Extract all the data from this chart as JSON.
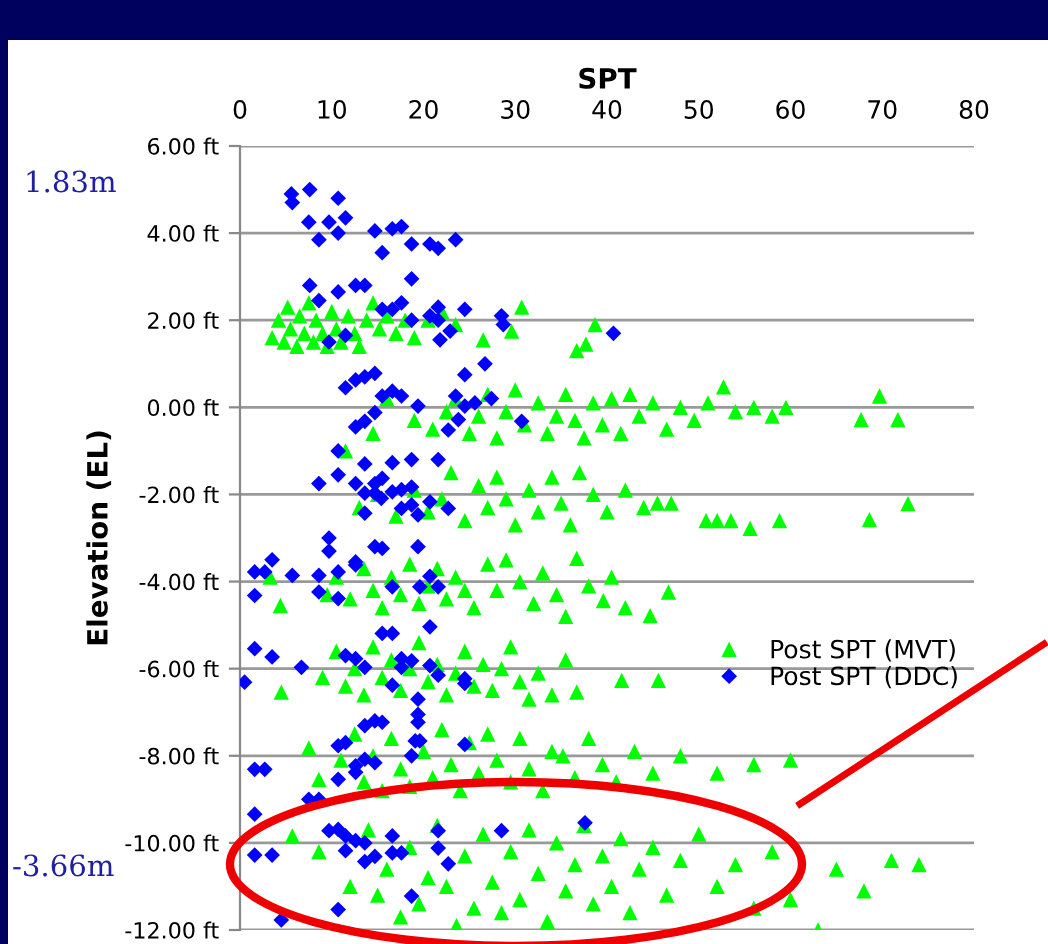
{
  "chart_data": {
    "type": "scatter",
    "xlabel": "SPT",
    "ylabel": "Elevation (EL)",
    "xlim": [
      0,
      80
    ],
    "xticks": [
      0,
      10,
      20,
      30,
      40,
      50,
      60,
      70,
      80
    ],
    "ylim": [
      -12,
      6
    ],
    "yticks": [
      {
        "value": 6,
        "label": "6.00 ft"
      },
      {
        "value": 4,
        "label": "4.00 ft"
      },
      {
        "value": 2,
        "label": "2.00 ft"
      },
      {
        "value": 0,
        "label": "0.00 ft"
      },
      {
        "value": -2,
        "label": "-2.00 ft"
      },
      {
        "value": -4,
        "label": "-4.00 ft"
      },
      {
        "value": -6,
        "label": "-6.00 ft"
      },
      {
        "value": -8,
        "label": "-8.00 ft"
      },
      {
        "value": -10,
        "label": "-10.00 ft"
      },
      {
        "value": -12,
        "label": "-12.00 ft"
      }
    ],
    "grid": "y",
    "legend": "right",
    "annotations": [
      "1.83m",
      "-3.66m"
    ],
    "series": [
      {
        "name": "Post SPT (MVT)",
        "color": "#00ff00",
        "marker": "triangle",
        "x": [
          3.5,
          4.2,
          4.8,
          5.2,
          5.5,
          6.2,
          6.5,
          7.0,
          7.5,
          8.0,
          8.3,
          9.0,
          9.5,
          10.0,
          10.5,
          11.0,
          11.8,
          12.5,
          13.0,
          13.8,
          14.5,
          15.2,
          16.0,
          17.0,
          18.0,
          19.0,
          20.5,
          22.0,
          23.5,
          26.5,
          29.6,
          30.7,
          36.7,
          37.7,
          38.7,
          14.5,
          16.0,
          19.0,
          21.0,
          22.5,
          23.5,
          25.0,
          26.0,
          27.0,
          28.0,
          29.0,
          30.0,
          31.0,
          32.5,
          33.5,
          34.5,
          35.5,
          36.5,
          37.5,
          38.5,
          39.5,
          40.5,
          41.5,
          42.5,
          43.5,
          45.0,
          46.5,
          48.0,
          49.5,
          51.0,
          52.7,
          54.0,
          56.0,
          58.0,
          59.5,
          67.7,
          69.7,
          71.7,
          11.5,
          13.0,
          15.0,
          17.0,
          19.0,
          20.5,
          22.0,
          23.0,
          24.5,
          26.0,
          27.0,
          28.0,
          29.0,
          30.0,
          31.5,
          32.5,
          34.0,
          35.0,
          36.0,
          37.0,
          38.5,
          40.0,
          42.0,
          44.0,
          45.5,
          47.0,
          50.8,
          52.0,
          53.5,
          55.6,
          58.8,
          68.6,
          72.8,
          3.3,
          4.4,
          9.5,
          10.5,
          12.0,
          13.5,
          14.5,
          15.5,
          16.5,
          17.5,
          18.5,
          19.5,
          20.5,
          21.5,
          22.5,
          23.5,
          24.5,
          25.5,
          27.0,
          28.0,
          29.0,
          30.5,
          32.0,
          33.0,
          34.5,
          35.5,
          36.7,
          38.0,
          39.6,
          40.5,
          42.0,
          44.7,
          46.7,
          4.5,
          9.0,
          10.5,
          11.5,
          12.5,
          13.5,
          14.5,
          15.5,
          16.5,
          17.5,
          18.5,
          19.5,
          20.5,
          21.5,
          22.5,
          23.5,
          24.5,
          25.5,
          26.5,
          27.5,
          28.5,
          29.5,
          30.5,
          31.5,
          32.5,
          34.0,
          35.5,
          36.7,
          41.6,
          45.6,
          7.5,
          8.6,
          11.0,
          12.5,
          13.5,
          14.5,
          15.5,
          16.5,
          17.5,
          18.5,
          20.0,
          21.0,
          22.0,
          23.0,
          24.0,
          25.0,
          26.0,
          27.0,
          28.0,
          29.5,
          30.5,
          31.5,
          33.0,
          34.0,
          35.2,
          36.5,
          38.0,
          39.5,
          41.0,
          43.0,
          45.0,
          48.0,
          52.0,
          56.0,
          60.0,
          5.7,
          8.6,
          12.0,
          14.0,
          15.0,
          16.0,
          17.5,
          18.5,
          19.5,
          20.5,
          21.5,
          22.5,
          23.6,
          24.5,
          25.5,
          26.5,
          27.5,
          28.5,
          29.5,
          30.5,
          31.5,
          32.5,
          33.5,
          34.5,
          35.5,
          36.5,
          37.5,
          38.5,
          39.5,
          40.5,
          41.5,
          42.5,
          43.5,
          45.0,
          46.5,
          48.0,
          50.0,
          52.0,
          54.0,
          56.0,
          58.0,
          60.0,
          63.0,
          65.0,
          68.0,
          71.0,
          74.0
        ],
        "values": [
          1.6,
          2.0,
          1.5,
          2.3,
          1.8,
          1.4,
          2.1,
          1.7,
          2.4,
          1.5,
          2.0,
          1.7,
          1.4,
          2.2,
          1.8,
          1.5,
          2.1,
          1.7,
          1.4,
          2.0,
          2.4,
          1.8,
          2.1,
          1.7,
          2.0,
          1.6,
          2.0,
          2.2,
          1.9,
          1.55,
          1.75,
          2.3,
          1.3,
          1.45,
          1.9,
          -0.6,
          0.2,
          -0.3,
          -0.5,
          -0.1,
          0.2,
          -0.6,
          -0.2,
          0.3,
          -0.7,
          -0.1,
          0.4,
          -0.4,
          0.1,
          -0.6,
          -0.2,
          0.3,
          -0.3,
          -0.7,
          0.1,
          -0.4,
          0.2,
          -0.6,
          0.3,
          -0.2,
          0.1,
          -0.5,
          0.0,
          -0.3,
          0.1,
          0.47,
          -0.1,
          0.0,
          -0.2,
          0.0,
          -0.28,
          0.26,
          -0.28,
          -1.0,
          -2.3,
          -2.0,
          -2.5,
          -1.9,
          -2.4,
          -2.1,
          -1.5,
          -2.6,
          -1.8,
          -2.3,
          -1.6,
          -2.1,
          -2.7,
          -1.9,
          -2.4,
          -1.6,
          -2.2,
          -2.7,
          -1.5,
          -2.0,
          -2.4,
          -1.9,
          -2.3,
          -2.2,
          -2.2,
          -2.6,
          -2.6,
          -2.6,
          -2.78,
          -2.6,
          -2.58,
          -2.21,
          -3.9,
          -4.55,
          -4.3,
          -3.9,
          -4.4,
          -3.7,
          -4.2,
          -4.6,
          -3.9,
          -4.3,
          -3.6,
          -4.5,
          -4.1,
          -3.7,
          -4.4,
          -3.9,
          -4.2,
          -4.6,
          -3.6,
          -4.2,
          -3.5,
          -4.0,
          -4.5,
          -3.8,
          -4.3,
          -4.8,
          -3.47,
          -4.1,
          -4.44,
          -3.9,
          -4.6,
          -4.78,
          -4.24,
          -6.54,
          -6.2,
          -5.6,
          -6.4,
          -6.0,
          -6.6,
          -5.5,
          -6.2,
          -5.8,
          -6.5,
          -6.0,
          -5.4,
          -6.3,
          -5.9,
          -6.6,
          -6.1,
          -5.6,
          -6.4,
          -5.9,
          -6.5,
          -6.0,
          -5.5,
          -6.3,
          -6.7,
          -6.1,
          -6.6,
          -5.8,
          -6.54,
          -6.27,
          -6.27,
          -7.82,
          -8.54,
          -8.1,
          -7.5,
          -8.6,
          -8.0,
          -8.8,
          -7.6,
          -8.3,
          -8.7,
          -7.9,
          -8.5,
          -7.4,
          -8.2,
          -8.8,
          -7.7,
          -8.4,
          -7.5,
          -8.1,
          -8.6,
          -7.6,
          -8.3,
          -8.8,
          -7.9,
          -8.0,
          -8.5,
          -7.6,
          -8.2,
          -8.6,
          -7.9,
          -8.4,
          -8.0,
          -8.4,
          -8.2,
          -8.1,
          -9.84,
          -10.2,
          -11.0,
          -9.7,
          -11.2,
          -10.6,
          -11.7,
          -10.1,
          -11.4,
          -10.8,
          -9.6,
          -11.0,
          -11.9,
          -10.3,
          -11.5,
          -9.8,
          -10.9,
          -11.6,
          -10.2,
          -11.3,
          -9.7,
          -10.7,
          -11.8,
          -10.0,
          -11.1,
          -10.5,
          -9.6,
          -11.4,
          -10.3,
          -11.0,
          -9.9,
          -11.6,
          -10.6,
          -10.1,
          -11.2,
          -10.4,
          -9.8,
          -11.0,
          -10.5,
          -11.5,
          -10.2,
          -11.3,
          -12.0,
          -10.6,
          -11.1,
          -10.4,
          -10.5
        ]
      },
      {
        "name": "Post SPT (DDC)",
        "color": "#0000ff",
        "marker": "diamond",
        "x": [
          5.6,
          7.6,
          5.7,
          7.5,
          8.6,
          9.7,
          10.7,
          11.5,
          10.7,
          14.7,
          16.6,
          17.6,
          15.5,
          18.7,
          20.7,
          21.6,
          23.5,
          18.7,
          7.6,
          8.6,
          10.7,
          12.6,
          13.6,
          15.5,
          16.6,
          17.6,
          21.6,
          24.5,
          18.7,
          20.7,
          21.6,
          28.5,
          28.7,
          22.9,
          21.8,
          11.5,
          9.7,
          40.7,
          24.5,
          26.7,
          11.5,
          12.6,
          13.6,
          14.7,
          15.5,
          16.6,
          17.6,
          19.4,
          23.5,
          24.5,
          25.6,
          27.4,
          23.8,
          22.7,
          30.7,
          14.7,
          13.6,
          12.6,
          10.7,
          10.7,
          8.6,
          13.6,
          16.6,
          18.7,
          21.6,
          12.6,
          14.7,
          15.5,
          13.6,
          14.7,
          16.6,
          17.6,
          18.7,
          17.6,
          18.7,
          20.7,
          22.7,
          19.4,
          13.6,
          15.4,
          9.7,
          9.7,
          14.7,
          15.5,
          19.4,
          3.5,
          12.6,
          1.6,
          2.7,
          1.6,
          5.7,
          8.6,
          10.7,
          12.6,
          8.6,
          10.7,
          16.6,
          19.6,
          20.7,
          21.6,
          20.7,
          15.5,
          16.6,
          1.6,
          3.5,
          6.7,
          0.5,
          11.5,
          12.6,
          13.6,
          17.6,
          18.7,
          16.6,
          17.6,
          20.7,
          21.6,
          24.5,
          24.5,
          19.4,
          19.4,
          19.4,
          13.6,
          14.7,
          15.5,
          19.1,
          19.6,
          24.5,
          18.7,
          11.5,
          10.7,
          12.6,
          12.6,
          13.6,
          14.7,
          10.7,
          8.6,
          1.6,
          2.7,
          1.6,
          7.5,
          9.7,
          10.7,
          11.5,
          11.5,
          12.6,
          13.6,
          13.6,
          14.7,
          16.6,
          16.6,
          17.6,
          21.6,
          21.6,
          22.7,
          28.5,
          37.6,
          1.6,
          3.5,
          18.7,
          10.7,
          4.5
        ],
        "values": [
          4.9,
          5.0,
          4.7,
          4.25,
          3.85,
          4.25,
          4.8,
          4.35,
          4.0,
          4.05,
          4.1,
          4.15,
          3.55,
          3.75,
          3.75,
          3.65,
          3.85,
          2.95,
          2.8,
          2.45,
          2.65,
          2.8,
          2.8,
          2.25,
          2.25,
          2.4,
          2.3,
          2.25,
          2.0,
          2.1,
          2.0,
          2.1,
          1.9,
          1.75,
          1.55,
          1.65,
          1.5,
          1.7,
          0.75,
          1.0,
          0.45,
          0.63,
          0.7,
          0.78,
          0.26,
          0.37,
          0.26,
          0.03,
          0.26,
          0.03,
          0.1,
          0.2,
          -0.28,
          -0.52,
          -0.32,
          -0.12,
          -0.32,
          -0.45,
          -1.0,
          -1.55,
          -1.75,
          -1.3,
          -1.27,
          -1.2,
          -1.2,
          -1.75,
          -1.75,
          -1.63,
          -1.97,
          -1.97,
          -1.94,
          -1.89,
          -1.83,
          -2.32,
          -2.24,
          -2.17,
          -2.32,
          -2.47,
          -2.43,
          -2.09,
          -3.0,
          -3.3,
          -3.2,
          -3.24,
          -3.2,
          -3.5,
          -3.55,
          -3.78,
          -3.78,
          -4.32,
          -3.86,
          -3.86,
          -3.78,
          -3.62,
          -4.24,
          -4.39,
          -4.12,
          -4.12,
          -3.88,
          -4.12,
          -5.04,
          -5.19,
          -5.19,
          -5.54,
          -5.73,
          -5.97,
          -6.31,
          -5.7,
          -5.77,
          -5.97,
          -5.77,
          -5.82,
          -6.38,
          -5.97,
          -5.93,
          -6.15,
          -6.23,
          -6.34,
          -6.7,
          -7.05,
          -7.23,
          -7.31,
          -7.2,
          -7.23,
          -7.66,
          -7.66,
          -7.74,
          -8.0,
          -7.7,
          -7.77,
          -8.23,
          -8.38,
          -8.08,
          -8.16,
          -8.54,
          -9.0,
          -8.31,
          -8.31,
          -9.34,
          -9.0,
          -9.72,
          -9.69,
          -9.84,
          -10.18,
          -9.95,
          -10.0,
          -10.43,
          -10.31,
          -9.84,
          -10.23,
          -10.23,
          -9.72,
          -10.12,
          -10.48,
          -9.72,
          -9.54,
          -10.28,
          -10.28,
          -11.22,
          -11.53,
          -11.77
        ]
      }
    ]
  }
}
